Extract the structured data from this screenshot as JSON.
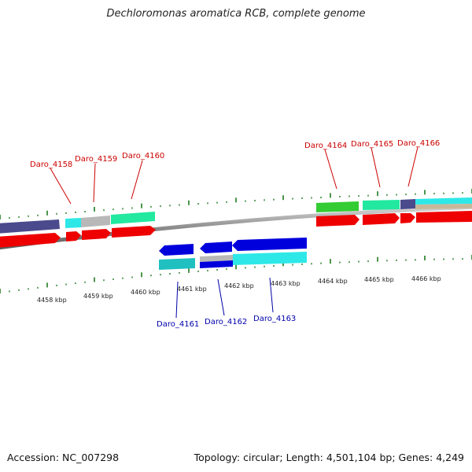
{
  "title": "Dechloromonas aromatica RCB, complete genome",
  "footer": {
    "accession": "Accession: NC_007298",
    "summary": "Topology: circular; Length: 4,501,104 bp; Genes: 4,249"
  },
  "scale_labels": [
    "4458 kbp",
    "4459 kbp",
    "4460 kbp",
    "4461 kbp",
    "4462 kbp",
    "4463 kbp",
    "4464 kbp",
    "4465 kbp",
    "4466 kbp"
  ],
  "forward_genes": [
    "Daro_4158",
    "Daro_4159",
    "Daro_4160",
    "Daro_4164",
    "Daro_4165",
    "Daro_4166"
  ],
  "reverse_genes": [
    "Daro_4161",
    "Daro_4162",
    "Daro_4163"
  ],
  "colors": {
    "backbone": "#8c8c8c",
    "forward_label": "#cc0000",
    "reverse_label": "#0000aa",
    "tick": "#1f7a1f",
    "gene_red": "#ee0000",
    "gene_blue": "#0000dd",
    "cog_navy": "#4a4a8c",
    "cog_cyan": "#2ee8e8",
    "cog_gray": "#b8b8b8",
    "cog_green": "#33cc33",
    "cog_mint": "#22e8a0",
    "cog_teal": "#20c0c0",
    "cog_tan": "#c8b89a"
  }
}
